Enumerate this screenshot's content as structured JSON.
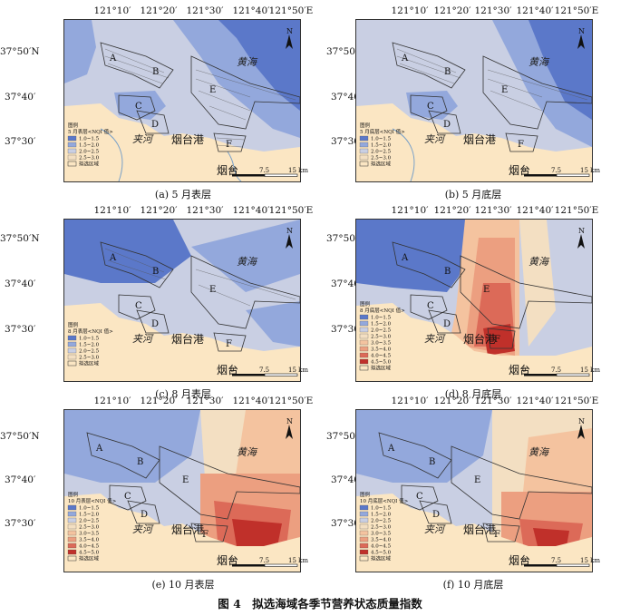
{
  "lon_labels": [
    "121°10′",
    "121°20′",
    "121°30′",
    "121°40′",
    "121°50′E"
  ],
  "lat_labels": [
    "37°50′N",
    "37°40′",
    "37°30′"
  ],
  "place_names": {
    "sea": "黄海",
    "river": "夹河",
    "port": "烟台港",
    "city": "烟台"
  },
  "zones": [
    "A",
    "B",
    "C",
    "D",
    "E",
    "F"
  ],
  "north_arrow": "N",
  "scale_bar": {
    "tick0": "0",
    "tick1": "7.5",
    "tick2": "15 km"
  },
  "legend_common": {
    "title": "图例",
    "zone_label": "拟选区域"
  },
  "nqi_classes": [
    {
      "label": "1.0~1.5",
      "color": "#5b78c9"
    },
    {
      "label": "1.5~2.0",
      "color": "#93a8dc"
    },
    {
      "label": "2.0~2.5",
      "color": "#c9cfe3"
    },
    {
      "label": "2.5~3.0",
      "color": "#f3dfc2"
    },
    {
      "label": "3.0~3.5",
      "color": "#f4c39f"
    },
    {
      "label": "3.5~4.0",
      "color": "#ec9f80"
    },
    {
      "label": "4.0~4.5",
      "color": "#dc6a58"
    },
    {
      "label": "4.5~5.0",
      "color": "#c0302a"
    }
  ],
  "land_color": "#fbe6c3",
  "panels": [
    {
      "id": "a",
      "caption": "(a) 5 月表层",
      "legend_subtitle": "5 月表层<NQI 值>",
      "classes": 4
    },
    {
      "id": "b",
      "caption": "(b) 5 月底层",
      "legend_subtitle": "5 月底层<NQI 值>",
      "classes": 4
    },
    {
      "id": "c",
      "caption": "(c) 8 月表层",
      "legend_subtitle": "8 月表层<NQI 值>",
      "classes": 4
    },
    {
      "id": "d",
      "caption": "(d) 8 月底层",
      "legend_subtitle": "8 月底层<NQI 值>",
      "classes": 8
    },
    {
      "id": "e",
      "caption": "(e) 10 月表层",
      "legend_subtitle": "10 月表层<NQI 值>",
      "classes": 8
    },
    {
      "id": "f",
      "caption": "(f) 10 月底层",
      "legend_subtitle": "10 月底层<NQI 值>",
      "classes": 8
    }
  ],
  "figure_caption": "图 4　拟选海域各季节营养状态质量指数"
}
